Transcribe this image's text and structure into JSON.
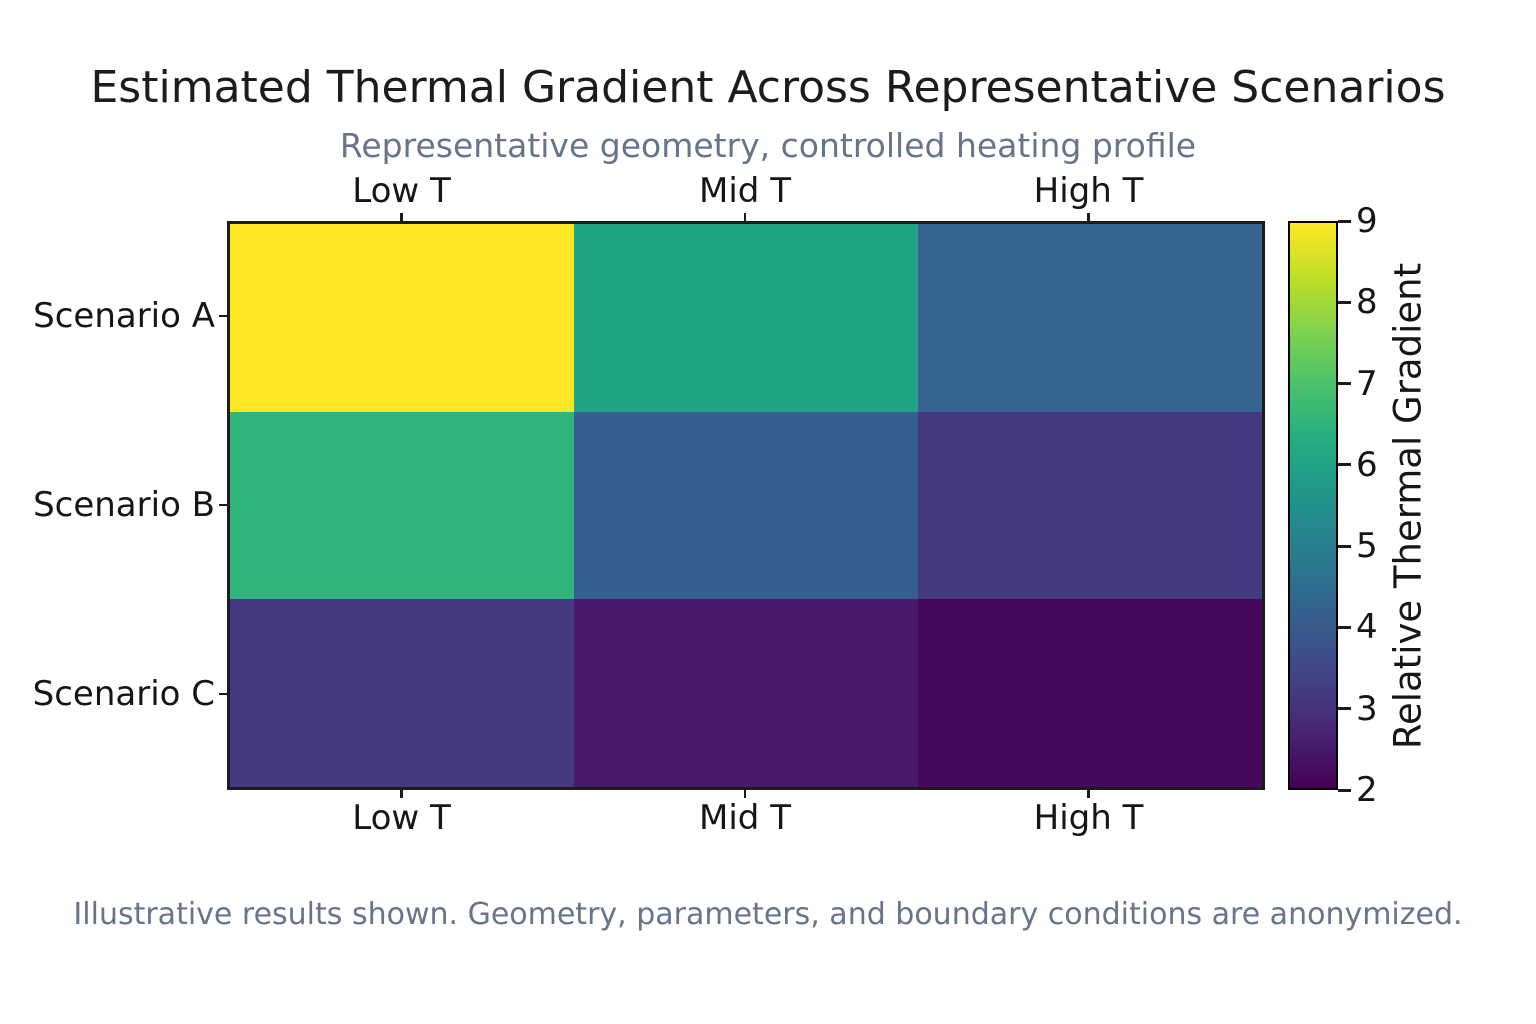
{
  "chart_data": {
    "type": "heatmap",
    "title": "Estimated Thermal Gradient Across Representative Scenarios",
    "subtitle": "Representative geometry, controlled heating profile",
    "footnote": "Illustrative results shown. Geometry, parameters, and boundary conditions are anonymized.",
    "rows": [
      "Scenario A",
      "Scenario B",
      "Scenario C"
    ],
    "columns": [
      "Low T",
      "Mid T",
      "High T"
    ],
    "values": [
      [
        9.0,
        6.0,
        4.3
      ],
      [
        6.5,
        4.2,
        3.1
      ],
      [
        3.0,
        2.5,
        2.2
      ]
    ],
    "cell_colors": [
      [
        "#fde725",
        "#21a385",
        "#34648f"
      ],
      [
        "#2fb47c",
        "#336090",
        "#42397f"
      ],
      [
        "#453780",
        "#471a6d",
        "#46095d"
      ]
    ],
    "colormap": "viridis",
    "vmin": 2,
    "vmax": 9,
    "colorbar_label": "Relative Thermal Gradient",
    "colorbar_ticks": [
      2,
      3,
      4,
      5,
      6,
      7,
      8,
      9
    ],
    "colormap_stops_bottom_to_top": [
      "#440154",
      "#482475",
      "#414487",
      "#355f8d",
      "#2a788e",
      "#21918c",
      "#22a884",
      "#44bf70",
      "#7ad151",
      "#bddf26",
      "#fde725"
    ],
    "x_axis_labels_shown": "top and bottom",
    "grid": false,
    "legend_position": "right colorbar",
    "colors": {
      "text": "#1c1c1c",
      "muted": "#66758c",
      "axis_border": "#1c1c1c"
    }
  }
}
